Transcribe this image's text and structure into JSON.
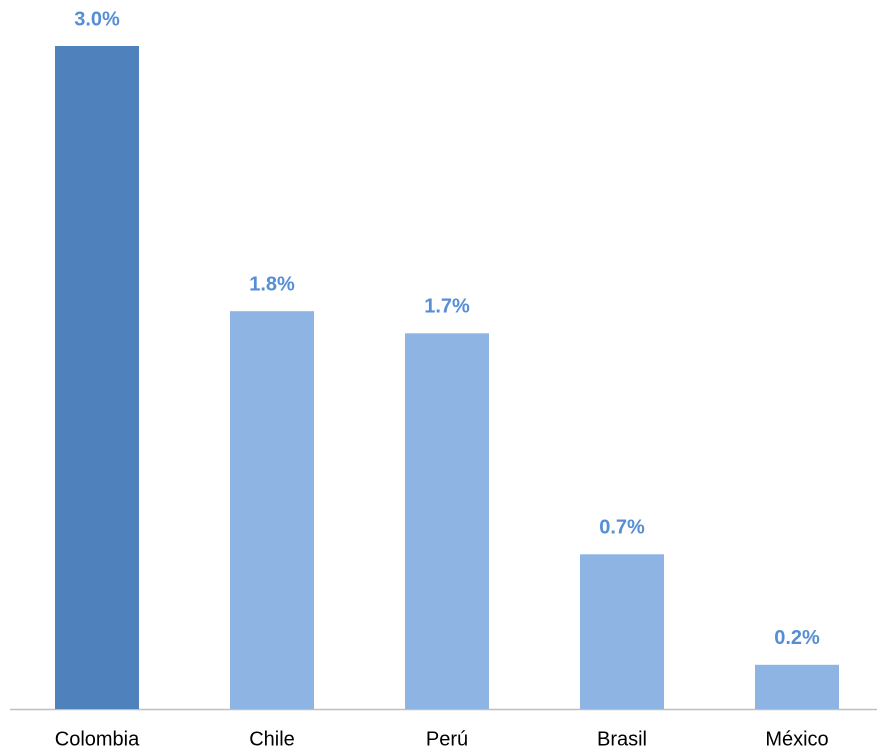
{
  "chart_data": {
    "type": "bar",
    "categories": [
      "Colombia",
      "Chile",
      "Perú",
      "Brasil",
      "México"
    ],
    "values": [
      3.0,
      1.8,
      1.7,
      0.7,
      0.2
    ],
    "value_labels": [
      "3.0%",
      "1.8%",
      "1.7%",
      "0.7%",
      "0.2%"
    ],
    "colors": [
      "#4f81bd",
      "#8eb4e3",
      "#8eb4e3",
      "#8eb4e3",
      "#8eb4e3"
    ],
    "label_color": "#558ed5"
  }
}
